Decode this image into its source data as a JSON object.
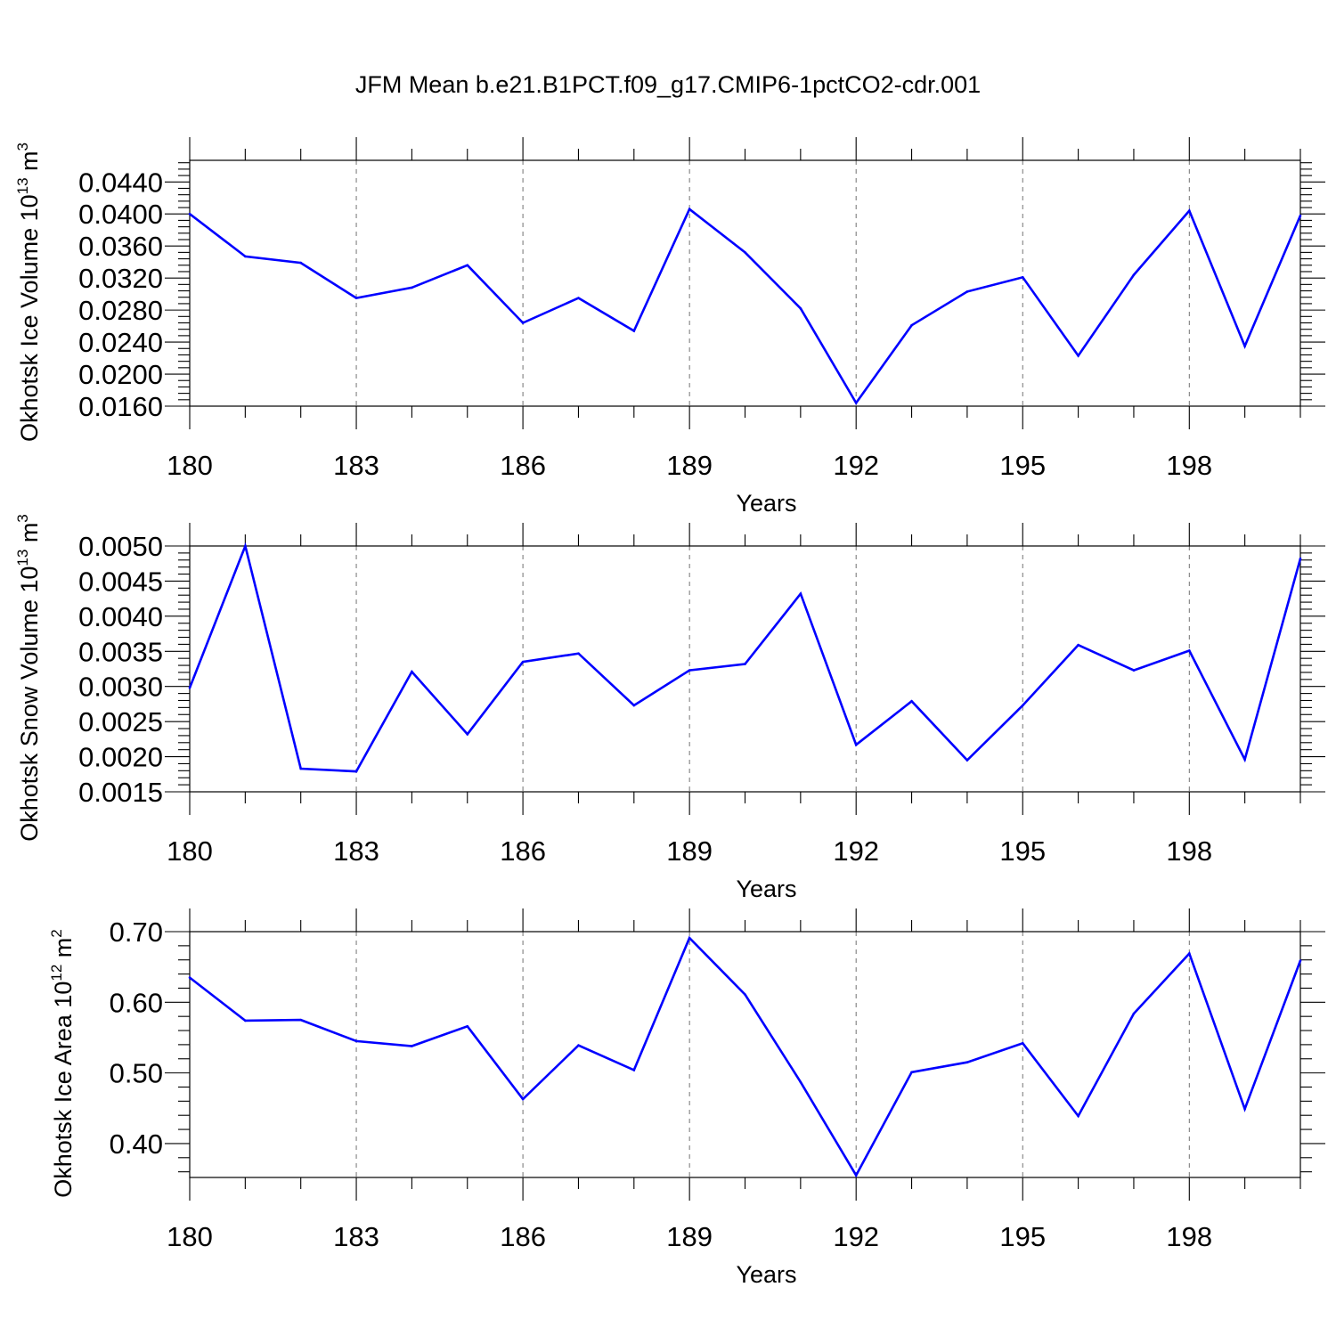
{
  "title": "JFM Mean b.e21.B1PCT.f09_g17.CMIP6-1pctCO2-cdr.001",
  "colors": {
    "series": "#0000ff",
    "axis": "#000000",
    "background": "#ffffff"
  },
  "chart_data": [
    {
      "type": "line",
      "ylabel_main": "Okhotsk Ice Volume 10",
      "ylabel_exp": "13",
      "ylabel_unit": " m",
      "ylabel_unit_exp": "3",
      "xlabel": "Years",
      "x": [
        180,
        181,
        182,
        183,
        184,
        185,
        186,
        187,
        188,
        189,
        190,
        191,
        192,
        193,
        194,
        195,
        196,
        197,
        198,
        199,
        200
      ],
      "xlim": [
        180,
        200
      ],
      "xticks": [
        180,
        183,
        186,
        189,
        192,
        195,
        198
      ],
      "xtick_labels": [
        "180",
        "183",
        "186",
        "189",
        "192",
        "195",
        "198"
      ],
      "ylim": [
        0.016,
        0.0467
      ],
      "yticks": [
        0.016,
        0.02,
        0.024,
        0.028,
        0.032,
        0.036,
        0.04,
        0.044
      ],
      "ytick_labels": [
        "0.0160",
        "0.0200",
        "0.0240",
        "0.0280",
        "0.0320",
        "0.0360",
        "0.0400",
        "0.0440"
      ],
      "series": [
        {
          "name": "Okhotsk Ice Volume",
          "values": [
            0.04,
            0.0347,
            0.0339,
            0.0295,
            0.0308,
            0.0336,
            0.0264,
            0.0295,
            0.0254,
            0.0406,
            0.0352,
            0.0282,
            0.0164,
            0.0261,
            0.0303,
            0.0321,
            0.0223,
            0.0324,
            0.0404,
            0.0235,
            0.0398
          ]
        }
      ]
    },
    {
      "type": "line",
      "ylabel_main": "Okhotsk Snow Volume 10",
      "ylabel_exp": "13",
      "ylabel_unit": " m",
      "ylabel_unit_exp": "3",
      "xlabel": "Years",
      "x": [
        180,
        181,
        182,
        183,
        184,
        185,
        186,
        187,
        188,
        189,
        190,
        191,
        192,
        193,
        194,
        195,
        196,
        197,
        198,
        199,
        200
      ],
      "xlim": [
        180,
        200
      ],
      "xticks": [
        180,
        183,
        186,
        189,
        192,
        195,
        198
      ],
      "xtick_labels": [
        "180",
        "183",
        "186",
        "189",
        "192",
        "195",
        "198"
      ],
      "ylim": [
        0.0015,
        0.005
      ],
      "yticks": [
        0.0015,
        0.002,
        0.0025,
        0.003,
        0.0035,
        0.004,
        0.0045,
        0.005
      ],
      "ytick_labels": [
        "0.0015",
        "0.0020",
        "0.0025",
        "0.0030",
        "0.0035",
        "0.0040",
        "0.0045",
        "0.0050"
      ],
      "series": [
        {
          "name": "Okhotsk Snow Volume",
          "values": [
            0.00298,
            0.005,
            0.00183,
            0.00179,
            0.00321,
            0.00232,
            0.00335,
            0.00347,
            0.00273,
            0.00323,
            0.00332,
            0.00432,
            0.00217,
            0.00279,
            0.00195,
            0.00273,
            0.00359,
            0.00323,
            0.00351,
            0.00196,
            0.00482
          ]
        }
      ]
    },
    {
      "type": "line",
      "ylabel_main": "Okhotsk Ice Area 10",
      "ylabel_exp": "12",
      "ylabel_unit": " m",
      "ylabel_unit_exp": "2",
      "xlabel": "Years",
      "x": [
        180,
        181,
        182,
        183,
        184,
        185,
        186,
        187,
        188,
        189,
        190,
        191,
        192,
        193,
        194,
        195,
        196,
        197,
        198,
        199,
        200
      ],
      "xlim": [
        180,
        200
      ],
      "xticks": [
        180,
        183,
        186,
        189,
        192,
        195,
        198
      ],
      "xtick_labels": [
        "180",
        "183",
        "186",
        "189",
        "192",
        "195",
        "198"
      ],
      "ylim": [
        0.352,
        0.7
      ],
      "yticks": [
        0.4,
        0.5,
        0.6,
        0.7
      ],
      "ytick_labels": [
        "0.40",
        "0.50",
        "0.60",
        "0.70"
      ],
      "series": [
        {
          "name": "Okhotsk Ice Area",
          "values": [
            0.635,
            0.574,
            0.575,
            0.545,
            0.538,
            0.566,
            0.463,
            0.539,
            0.504,
            0.691,
            0.611,
            0.487,
            0.355,
            0.501,
            0.515,
            0.542,
            0.439,
            0.584,
            0.669,
            0.449,
            0.659
          ]
        }
      ]
    }
  ]
}
